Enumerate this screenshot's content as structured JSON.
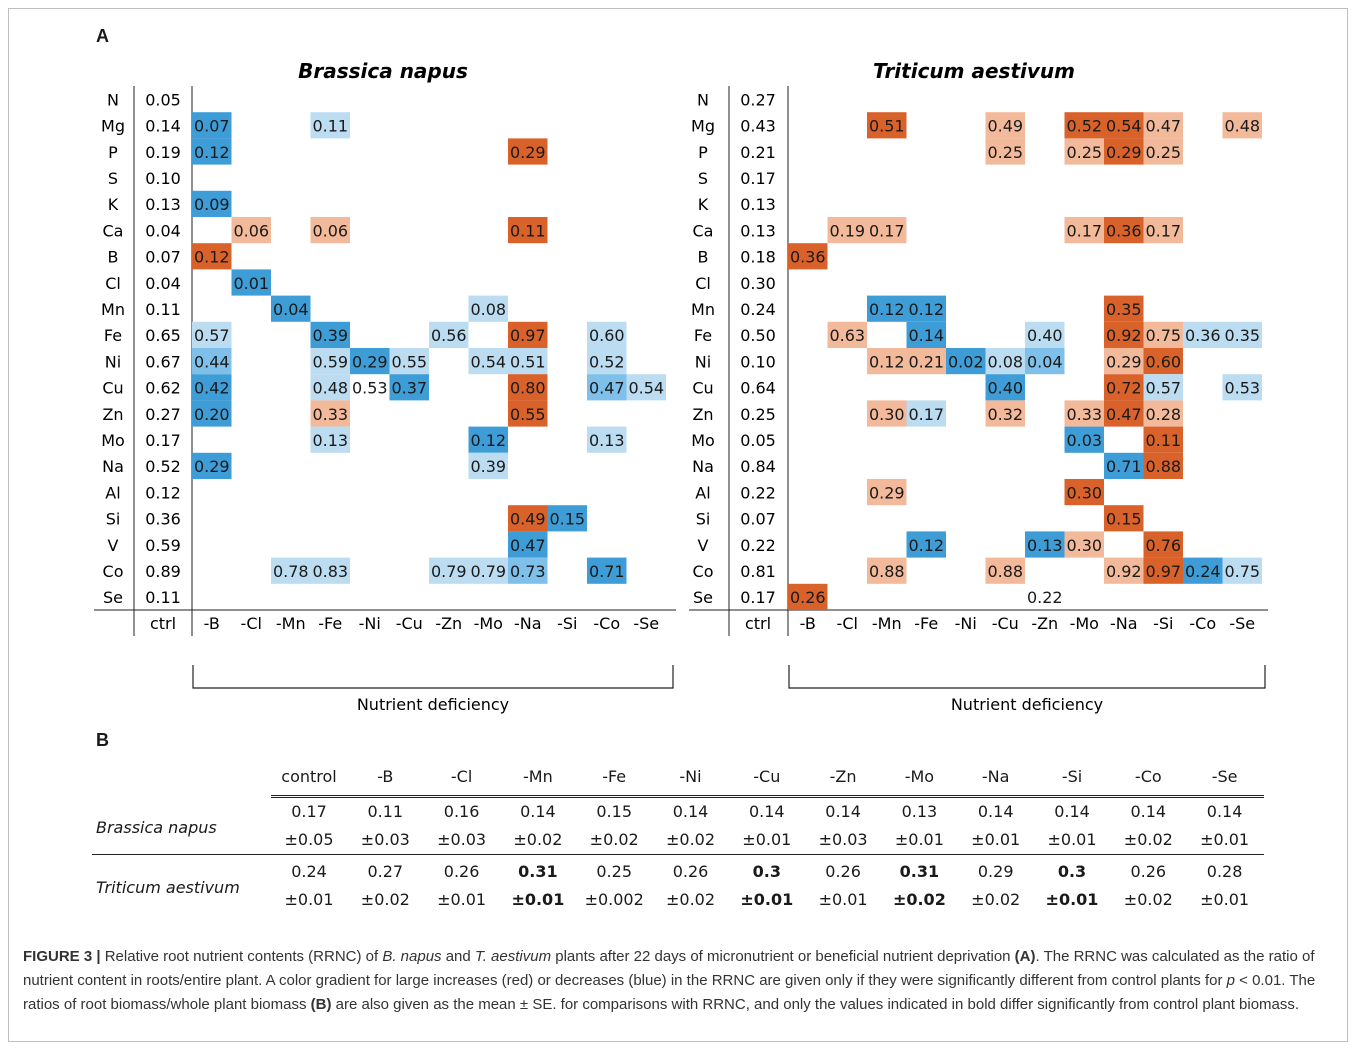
{
  "panel_a_label": "A",
  "panel_b_label": "B",
  "chart_data": {
    "type": "heatmap",
    "rows": [
      "N",
      "Mg",
      "P",
      "S",
      "K",
      "Ca",
      "B",
      "Cl",
      "Mn",
      "Fe",
      "Ni",
      "Cu",
      "Zn",
      "Mo",
      "Na",
      "Al",
      "Si",
      "V",
      "Co",
      "Se"
    ],
    "columns": [
      "ctrl",
      "-B",
      "-Cl",
      "-Mn",
      "-Fe",
      "-Ni",
      "-Cu",
      "-Zn",
      "-Mo",
      "-Na",
      "-Si",
      "-Co",
      "-Se"
    ],
    "x_group_label": "Nutrient deficiency",
    "colors": {
      "red_strong": "#d9622b",
      "red_light": "#f2b99a",
      "blue_strong": "#3e9dd6",
      "blue_light": "#bcdcf1",
      "blue_mid": "#7fc0ea"
    },
    "panels": [
      {
        "title": "Brassica napus",
        "ctrl": [
          0.05,
          0.14,
          0.19,
          0.1,
          0.13,
          0.04,
          0.07,
          0.04,
          0.11,
          0.65,
          0.67,
          0.62,
          0.27,
          0.17,
          0.52,
          0.12,
          0.36,
          0.59,
          0.89,
          0.11
        ],
        "cells": [
          {
            "row": "Mg",
            "col": "-B",
            "value": "0.07",
            "color": "blue_strong"
          },
          {
            "row": "Mg",
            "col": "-Fe",
            "value": "0.11",
            "color": "blue_light"
          },
          {
            "row": "P",
            "col": "-B",
            "value": "0.12",
            "color": "blue_strong"
          },
          {
            "row": "P",
            "col": "-Na",
            "value": "0.29",
            "color": "red_strong"
          },
          {
            "row": "K",
            "col": "-B",
            "value": "0.09",
            "color": "blue_strong"
          },
          {
            "row": "Ca",
            "col": "-Cl",
            "value": "0.06",
            "color": "red_light"
          },
          {
            "row": "Ca",
            "col": "-Fe",
            "value": "0.06",
            "color": "red_light"
          },
          {
            "row": "Ca",
            "col": "-Na",
            "value": "0.11",
            "color": "red_strong"
          },
          {
            "row": "B",
            "col": "-B",
            "value": "0.12",
            "color": "red_strong"
          },
          {
            "row": "Cl",
            "col": "-Cl",
            "value": "0.01",
            "color": "blue_strong"
          },
          {
            "row": "Mn",
            "col": "-Mn",
            "value": "0.04",
            "color": "blue_strong"
          },
          {
            "row": "Mn",
            "col": "-Mo",
            "value": "0.08",
            "color": "blue_light"
          },
          {
            "row": "Fe",
            "col": "-B",
            "value": "0.57",
            "color": "blue_light"
          },
          {
            "row": "Fe",
            "col": "-Fe",
            "value": "0.39",
            "color": "blue_strong"
          },
          {
            "row": "Fe",
            "col": "-Zn",
            "value": "0.56",
            "color": "blue_light"
          },
          {
            "row": "Fe",
            "col": "-Na",
            "value": "0.97",
            "color": "red_strong"
          },
          {
            "row": "Fe",
            "col": "-Co",
            "value": "0.60",
            "color": "blue_light"
          },
          {
            "row": "Ni",
            "col": "-B",
            "value": "0.44",
            "color": "blue_mid"
          },
          {
            "row": "Ni",
            "col": "-Fe",
            "value": "0.59",
            "color": "blue_light"
          },
          {
            "row": "Ni",
            "col": "-Ni",
            "value": "0.29",
            "color": "blue_strong"
          },
          {
            "row": "Ni",
            "col": "-Cu",
            "value": "0.55",
            "color": "blue_light"
          },
          {
            "row": "Ni",
            "col": "-Mo",
            "value": "0.54",
            "color": "blue_light"
          },
          {
            "row": "Ni",
            "col": "-Na",
            "value": "0.51",
            "color": "blue_light"
          },
          {
            "row": "Ni",
            "col": "-Co",
            "value": "0.52",
            "color": "blue_light"
          },
          {
            "row": "Cu",
            "col": "-B",
            "value": "0.42",
            "color": "blue_strong"
          },
          {
            "row": "Cu",
            "col": "-Fe",
            "value": "0.48",
            "color": "blue_light"
          },
          {
            "row": "Cu",
            "col": "-Ni",
            "value": "0.53",
            "color": "none"
          },
          {
            "row": "Cu",
            "col": "-Cu",
            "value": "0.37",
            "color": "blue_strong"
          },
          {
            "row": "Cu",
            "col": "-Na",
            "value": "0.80",
            "color": "red_strong"
          },
          {
            "row": "Cu",
            "col": "-Co",
            "value": "0.47",
            "color": "blue_mid"
          },
          {
            "row": "Cu",
            "col": "-Se",
            "value": "0.54",
            "color": "blue_light"
          },
          {
            "row": "Zn",
            "col": "-B",
            "value": "0.20",
            "color": "blue_strong"
          },
          {
            "row": "Zn",
            "col": "-Fe",
            "value": "0.33",
            "color": "red_light"
          },
          {
            "row": "Zn",
            "col": "-Na",
            "value": "0.55",
            "color": "red_strong"
          },
          {
            "row": "Mo",
            "col": "-Fe",
            "value": "0.13",
            "color": "blue_light"
          },
          {
            "row": "Mo",
            "col": "-Mo",
            "value": "0.12",
            "color": "blue_strong"
          },
          {
            "row": "Mo",
            "col": "-Co",
            "value": "0.13",
            "color": "blue_light"
          },
          {
            "row": "Na",
            "col": "-B",
            "value": "0.29",
            "color": "blue_strong"
          },
          {
            "row": "Na",
            "col": "-Mo",
            "value": "0.39",
            "color": "blue_light"
          },
          {
            "row": "Si",
            "col": "-Na",
            "value": "0.49",
            "color": "red_strong"
          },
          {
            "row": "Si",
            "col": "-Si",
            "value": "0.15",
            "color": "blue_strong"
          },
          {
            "row": "V",
            "col": "-Na",
            "value": "0.47",
            "color": "blue_strong"
          },
          {
            "row": "Co",
            "col": "-Mn",
            "value": "0.78",
            "color": "blue_light"
          },
          {
            "row": "Co",
            "col": "-Fe",
            "value": "0.83",
            "color": "blue_light"
          },
          {
            "row": "Co",
            "col": "-Zn",
            "value": "0.79",
            "color": "blue_light"
          },
          {
            "row": "Co",
            "col": "-Mo",
            "value": "0.79",
            "color": "blue_light"
          },
          {
            "row": "Co",
            "col": "-Na",
            "value": "0.73",
            "color": "blue_mid"
          },
          {
            "row": "Co",
            "col": "-Co",
            "value": "0.71",
            "color": "blue_strong"
          }
        ]
      },
      {
        "title": "Triticum aestivum",
        "ctrl": [
          0.27,
          0.43,
          0.21,
          0.17,
          0.13,
          0.13,
          0.18,
          0.3,
          0.24,
          0.5,
          0.1,
          0.64,
          0.25,
          0.05,
          0.84,
          0.22,
          0.07,
          0.22,
          0.81,
          0.17
        ],
        "cells": [
          {
            "row": "Mg",
            "col": "-Mn",
            "value": "0.51",
            "color": "red_strong"
          },
          {
            "row": "Mg",
            "col": "-Cu",
            "value": "0.49",
            "color": "red_light"
          },
          {
            "row": "Mg",
            "col": "-Mo",
            "value": "0.52",
            "color": "red_strong"
          },
          {
            "row": "Mg",
            "col": "-Na",
            "value": "0.54",
            "color": "red_strong"
          },
          {
            "row": "Mg",
            "col": "-Si",
            "value": "0.47",
            "color": "red_light"
          },
          {
            "row": "Mg",
            "col": "-Se",
            "value": "0.48",
            "color": "red_light"
          },
          {
            "row": "P",
            "col": "-Cu",
            "value": "0.25",
            "color": "red_light"
          },
          {
            "row": "P",
            "col": "-Mo",
            "value": "0.25",
            "color": "red_light"
          },
          {
            "row": "P",
            "col": "-Na",
            "value": "0.29",
            "color": "red_strong"
          },
          {
            "row": "P",
            "col": "-Si",
            "value": "0.25",
            "color": "red_light"
          },
          {
            "row": "Ca",
            "col": "-Cl",
            "value": "0.19",
            "color": "red_light"
          },
          {
            "row": "Ca",
            "col": "-Mn",
            "value": "0.17",
            "color": "red_light"
          },
          {
            "row": "Ca",
            "col": "-Mo",
            "value": "0.17",
            "color": "red_light"
          },
          {
            "row": "Ca",
            "col": "-Na",
            "value": "0.36",
            "color": "red_strong"
          },
          {
            "row": "Ca",
            "col": "-Si",
            "value": "0.17",
            "color": "red_light"
          },
          {
            "row": "B",
            "col": "-B",
            "value": "0.36",
            "color": "red_strong"
          },
          {
            "row": "Mn",
            "col": "-Mn",
            "value": "0.12",
            "color": "blue_strong"
          },
          {
            "row": "Mn",
            "col": "-Fe",
            "value": "0.12",
            "color": "blue_strong"
          },
          {
            "row": "Mn",
            "col": "-Na",
            "value": "0.35",
            "color": "red_strong"
          },
          {
            "row": "Fe",
            "col": "-Cl",
            "value": "0.63",
            "color": "red_light"
          },
          {
            "row": "Fe",
            "col": "-Fe",
            "value": "0.14",
            "color": "blue_strong"
          },
          {
            "row": "Fe",
            "col": "-Zn",
            "value": "0.40",
            "color": "blue_light"
          },
          {
            "row": "Fe",
            "col": "-Na",
            "value": "0.92",
            "color": "red_strong"
          },
          {
            "row": "Fe",
            "col": "-Si",
            "value": "0.75",
            "color": "red_light"
          },
          {
            "row": "Fe",
            "col": "-Co",
            "value": "0.36",
            "color": "blue_light"
          },
          {
            "row": "Fe",
            "col": "-Se",
            "value": "0.35",
            "color": "blue_light"
          },
          {
            "row": "Ni",
            "col": "-Mn",
            "value": "0.12",
            "color": "red_light"
          },
          {
            "row": "Ni",
            "col": "-Fe",
            "value": "0.21",
            "color": "red_light"
          },
          {
            "row": "Ni",
            "col": "-Ni",
            "value": "0.02",
            "color": "blue_strong"
          },
          {
            "row": "Ni",
            "col": "-Cu",
            "value": "0.08",
            "color": "blue_light"
          },
          {
            "row": "Ni",
            "col": "-Zn",
            "value": "0.04",
            "color": "blue_mid"
          },
          {
            "row": "Ni",
            "col": "-Na",
            "value": "0.29",
            "color": "red_light"
          },
          {
            "row": "Ni",
            "col": "-Si",
            "value": "0.60",
            "color": "red_strong"
          },
          {
            "row": "Cu",
            "col": "-Cu",
            "value": "0.40",
            "color": "blue_strong"
          },
          {
            "row": "Cu",
            "col": "-Na",
            "value": "0.72",
            "color": "red_strong"
          },
          {
            "row": "Cu",
            "col": "-Si",
            "value": "0.57",
            "color": "blue_light"
          },
          {
            "row": "Cu",
            "col": "-Se",
            "value": "0.53",
            "color": "blue_light"
          },
          {
            "row": "Zn",
            "col": "-Mn",
            "value": "0.30",
            "color": "red_light"
          },
          {
            "row": "Zn",
            "col": "-Fe",
            "value": "0.17",
            "color": "blue_light"
          },
          {
            "row": "Zn",
            "col": "-Cu",
            "value": "0.32",
            "color": "red_light"
          },
          {
            "row": "Zn",
            "col": "-Mo",
            "value": "0.33",
            "color": "red_light"
          },
          {
            "row": "Zn",
            "col": "-Na",
            "value": "0.47",
            "color": "red_strong"
          },
          {
            "row": "Zn",
            "col": "-Si",
            "value": "0.28",
            "color": "red_light"
          },
          {
            "row": "Mo",
            "col": "-Mo",
            "value": "0.03",
            "color": "blue_strong"
          },
          {
            "row": "Mo",
            "col": "-Si",
            "value": "0.11",
            "color": "red_strong"
          },
          {
            "row": "Na",
            "col": "-Na",
            "value": "0.71",
            "color": "blue_strong"
          },
          {
            "row": "Na",
            "col": "-Si",
            "value": "0.88",
            "color": "red_strong"
          },
          {
            "row": "Al",
            "col": "-Mn",
            "value": "0.29",
            "color": "red_light"
          },
          {
            "row": "Al",
            "col": "-Mo",
            "value": "0.30",
            "color": "red_strong"
          },
          {
            "row": "Si",
            "col": "-Na",
            "value": "0.15",
            "color": "red_strong"
          },
          {
            "row": "V",
            "col": "-Fe",
            "value": "0.12",
            "color": "blue_strong"
          },
          {
            "row": "V",
            "col": "-Zn",
            "value": "0.13",
            "color": "blue_strong"
          },
          {
            "row": "V",
            "col": "-Mo",
            "value": "0.30",
            "color": "red_light"
          },
          {
            "row": "V",
            "col": "-Si",
            "value": "0.76",
            "color": "red_strong"
          },
          {
            "row": "Co",
            "col": "-Mn",
            "value": "0.88",
            "color": "red_light"
          },
          {
            "row": "Co",
            "col": "-Cu",
            "value": "0.88",
            "color": "red_light"
          },
          {
            "row": "Co",
            "col": "-Na",
            "value": "0.92",
            "color": "red_light"
          },
          {
            "row": "Co",
            "col": "-Si",
            "value": "0.97",
            "color": "red_strong"
          },
          {
            "row": "Co",
            "col": "-Co",
            "value": "0.24",
            "color": "blue_strong"
          },
          {
            "row": "Co",
            "col": "-Se",
            "value": "0.75",
            "color": "blue_light"
          },
          {
            "row": "Se",
            "col": "-B",
            "value": "0.26",
            "color": "red_strong"
          },
          {
            "row": "Se",
            "col": "-Zn",
            "value": "0.22",
            "color": "none"
          }
        ]
      }
    ]
  },
  "table_b": {
    "headers": [
      "control",
      "-B",
      "-Cl",
      "-Mn",
      "-Fe",
      "-Ni",
      "-Cu",
      "-Zn",
      "-Mo",
      "-Na",
      "-Si",
      "-Co",
      "-Se"
    ],
    "rows": [
      {
        "species": "Brassica napus",
        "means": [
          "0.17",
          "0.11",
          "0.16",
          "0.14",
          "0.15",
          "0.14",
          "0.14",
          "0.14",
          "0.13",
          "0.14",
          "0.14",
          "0.14",
          "0.14"
        ],
        "se": [
          "±0.05",
          "±0.03",
          "±0.03",
          "±0.02",
          "±0.02",
          "±0.02",
          "±0.01",
          "±0.03",
          "±0.01",
          "±0.01",
          "±0.01",
          "±0.02",
          "±0.01"
        ],
        "bold": [
          false,
          false,
          false,
          false,
          false,
          false,
          false,
          false,
          false,
          false,
          false,
          false,
          false
        ]
      },
      {
        "species": "Triticum aestivum",
        "means": [
          "0.24",
          "0.27",
          "0.26",
          "0.31",
          "0.25",
          "0.26",
          "0.3",
          "0.26",
          "0.31",
          "0.29",
          "0.3",
          "0.26",
          "0.28"
        ],
        "se": [
          "±0.01",
          "±0.02",
          "±0.01",
          "±0.01",
          "±0.002",
          "±0.02",
          "±0.01",
          "±0.01",
          "±0.02",
          "±0.02",
          "±0.01",
          "±0.02",
          "±0.01"
        ],
        "bold": [
          false,
          false,
          false,
          true,
          false,
          false,
          true,
          false,
          true,
          false,
          true,
          false,
          false
        ]
      }
    ]
  },
  "caption": {
    "figure_label": "FIGURE 3 |",
    "part1": " Relative root nutrient contents (RRNC) of ",
    "bnapus": "B. napus",
    "part2": " and ",
    "taestivum": "T. aestivum",
    "part3": " plants after 22 days of micronutrient or beneficial nutrient deprivation ",
    "ref_a": "(A)",
    "part4": ". The RRNC was calculated as the ratio of nutrient content in roots/entire plant. A color gradient for large increases (red) or decreases (blue) in the RRNC are given only if they were significantly different from control plants for ",
    "p": "p",
    "part5": " < 0.01. The ratios of root biomass/whole plant biomass ",
    "ref_b": "(B)",
    "part6": " are also given as the mean ± SE. for comparisons with RRNC, and only the values indicated in bold differ significantly from control plant biomass."
  }
}
